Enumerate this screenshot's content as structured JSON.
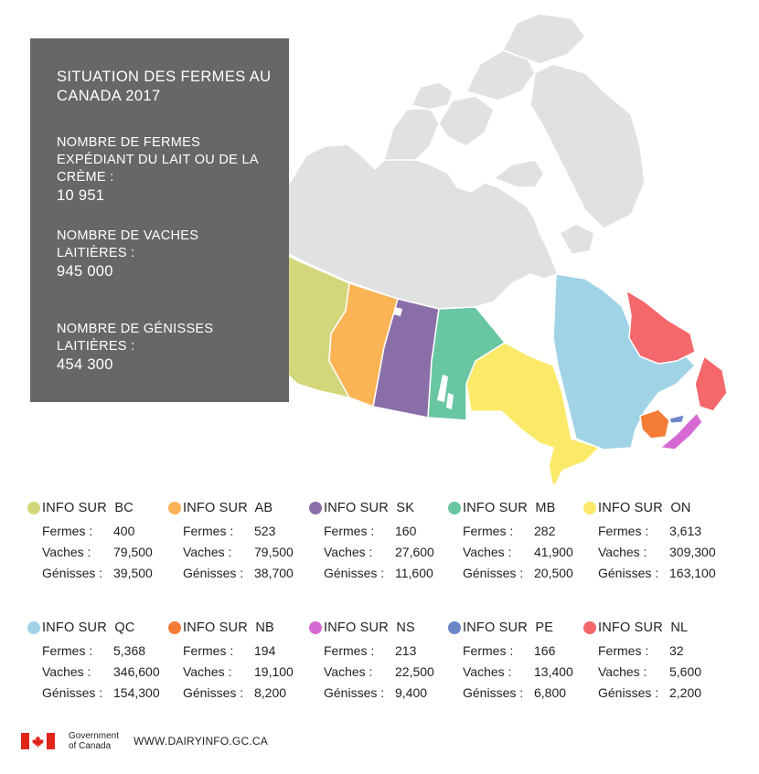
{
  "summary": {
    "title": "SITUATION DES FERMES AU CANADA 2017",
    "farms_label": "NOMBRE DE FERMES EXPÉDIANT DU LAIT OU DE LA CRÈME :",
    "farms_value": "10 951",
    "cows_label": "NOMBRE DE VACHES LAITIÈRES :",
    "cows_value": "945 000",
    "heifers_label": "NOMBRE DE GÉNISSES LAITIÈRES :",
    "heifers_value": "454 300"
  },
  "row_labels": {
    "farms": "Fermes :",
    "cows": "Vaches :",
    "heifers": "Génisses :"
  },
  "provinces": [
    {
      "code": "BC",
      "header": "INFO SUR  BC",
      "color": "#d3d67a",
      "farms": "400",
      "cows": "79,500",
      "heifers": "39,500"
    },
    {
      "code": "AB",
      "header": "INFO SUR  AB",
      "color": "#fbb455",
      "farms": "523",
      "cows": "79,500",
      "heifers": "38,700"
    },
    {
      "code": "SK",
      "header": "INFO SUR  SK",
      "color": "#8a6ea8",
      "farms": "160",
      "cows": "27,600",
      "heifers": "11,600"
    },
    {
      "code": "MB",
      "header": "INFO SUR  MB",
      "color": "#68c6a1",
      "farms": "282",
      "cows": "41,900",
      "heifers": "20,500"
    },
    {
      "code": "ON",
      "header": "INFO SUR  ON",
      "color": "#fbea69",
      "farms": "3,613",
      "cows": "309,300",
      "heifers": "163,100"
    },
    {
      "code": "QC",
      "header": "INFO SUR  QC",
      "color": "#9fd3e5",
      "farms": "5,368",
      "cows": "346,600",
      "heifers": "154,300"
    },
    {
      "code": "NB",
      "header": "INFO SUR  NB",
      "color": "#f47c36",
      "farms": "194",
      "cows": "19,100",
      "heifers": "8,200"
    },
    {
      "code": "NS",
      "header": "INFO SUR  NS",
      "color": "#d66ad3",
      "farms": "213",
      "cows": "22,500",
      "heifers": "9,400"
    },
    {
      "code": "PE",
      "header": "INFO SUR  PE",
      "color": "#6c86c6",
      "farms": "166",
      "cows": "13,400",
      "heifers": "6,800"
    },
    {
      "code": "NL",
      "header": "INFO SUR  NL",
      "color": "#f4676a",
      "farms": "32",
      "cows": "5,600",
      "heifers": "2,200"
    }
  ],
  "territories_color": "#e1e1e1",
  "panel_color": "#676767",
  "footer": {
    "gov_line1": "Government",
    "gov_line2": "of Canada",
    "url": "WWW.DAIRYINFO.GC.CA",
    "flag_color": "#e1251b"
  }
}
